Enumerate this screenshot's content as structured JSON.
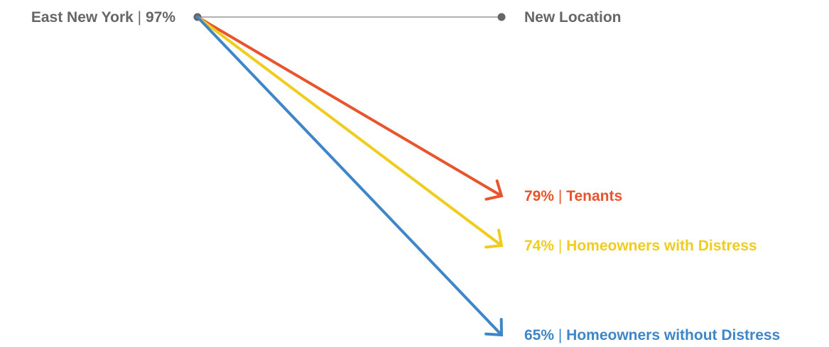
{
  "chart_data": {
    "type": "slope",
    "x": [
      "East New York",
      "New Location"
    ],
    "start": {
      "name": "East New York",
      "value": 97,
      "value_label": "97%",
      "separator": "|"
    },
    "end_label": "New Location",
    "series": [
      {
        "name": "Tenants",
        "value": 79,
        "value_label": "79%",
        "color": "#e8542c"
      },
      {
        "name": "Homeowners with Distress",
        "value": 74,
        "value_label": "74%",
        "color": "#f0cc1c"
      },
      {
        "name": "Homeowners without Distress",
        "value": 65,
        "value_label": "65%",
        "color": "#3f86c8"
      }
    ],
    "axis_color": "#666666"
  }
}
